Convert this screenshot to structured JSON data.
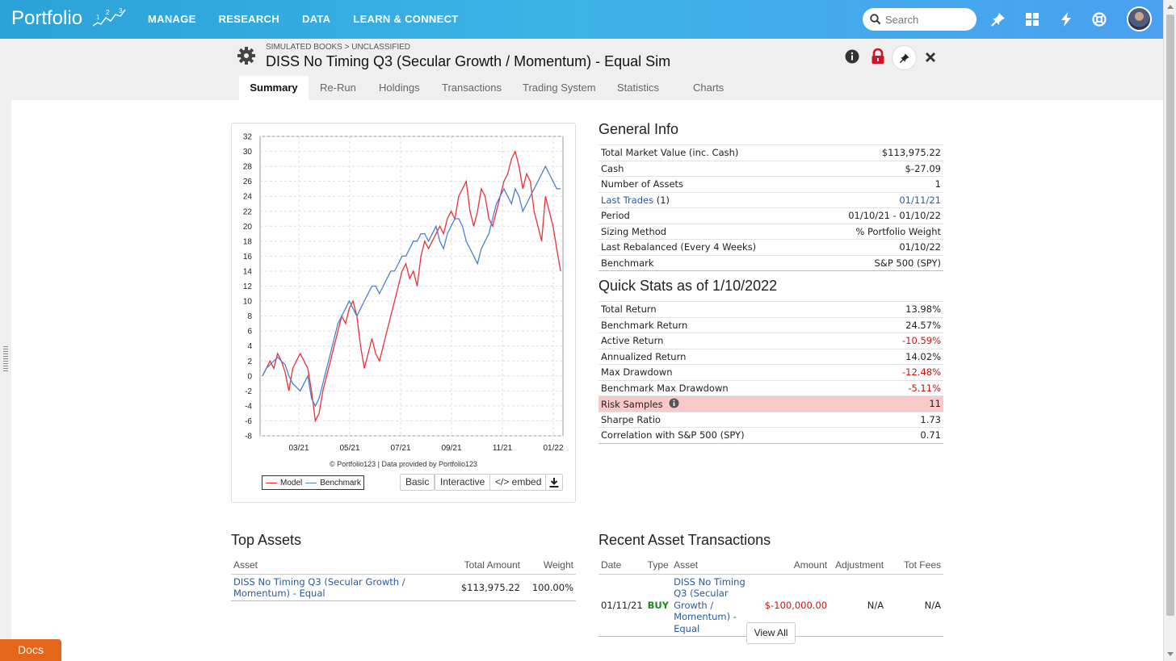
{
  "nav": {
    "logo": "Portfolio",
    "links": [
      "MANAGE",
      "RESEARCH",
      "DATA",
      "LEARN & CONNECT"
    ],
    "search_placeholder": "Search"
  },
  "header": {
    "breadcrumb": "SIMULATED BOOKS > UNCLASSIFIED",
    "title": "DISS No Timing Q3 (Secular Growth / Momentum) - Equal Sim"
  },
  "tabs": [
    "Summary",
    "Re-Run",
    "Holdings",
    "Transactions",
    "Trading System",
    "Statistics",
    "Charts"
  ],
  "general_info": {
    "title": "General Info",
    "rows": [
      {
        "label": "Total Market Value (inc. Cash)",
        "value": "$113,975.22"
      },
      {
        "label": "Cash",
        "value": "$-27.09"
      },
      {
        "label": "Number of Assets",
        "value": "1"
      },
      {
        "label": "Last Trades",
        "label_suffix": " (1)",
        "value": "01/11/21"
      },
      {
        "label": "Period",
        "value": "01/10/21 - 01/10/22"
      },
      {
        "label": "Sizing Method",
        "value": "% Portfolio Weight"
      },
      {
        "label": "Last Rebalanced (Every 4 Weeks)",
        "value": "01/10/22"
      },
      {
        "label": "Benchmark",
        "value": "S&P 500 (SPY)"
      }
    ]
  },
  "quick_stats": {
    "title": "Quick Stats as of 1/10/2022",
    "rows": [
      {
        "label": "Total Return",
        "value": "13.98%"
      },
      {
        "label": "Benchmark Return",
        "value": "24.57%"
      },
      {
        "label": "Active Return",
        "value": "-10.59%"
      },
      {
        "label": "Annualized Return",
        "value": "14.02%"
      },
      {
        "label": "Max Drawdown",
        "value": "-12.48%"
      },
      {
        "label": "Benchmark Max Drawdown",
        "value": "-5.11%"
      },
      {
        "label": "Risk Samples",
        "value": "11"
      },
      {
        "label": "Sharpe Ratio",
        "value": "1.73"
      },
      {
        "label": "Correlation with S&P 500 (SPY)",
        "value": "0.71"
      }
    ]
  },
  "chart": {
    "credit": "© Portfolio123 | Data provided by Portfolio123",
    "legend": [
      "Model",
      "Benchmark"
    ],
    "buttons": [
      "Basic",
      "Interactive",
      "</> embed"
    ],
    "colors": {
      "model": "#e8313a",
      "benchmark": "#4a7fd1"
    }
  },
  "chart_data": {
    "type": "line",
    "title": "",
    "xlabel": "",
    "ylabel": "",
    "x_ticks": [
      "03/21",
      "05/21",
      "07/21",
      "09/21",
      "11/21",
      "01/22"
    ],
    "y_ticks": [
      32,
      30,
      28,
      26,
      24,
      22,
      20,
      18,
      16,
      14,
      12,
      10,
      8,
      6,
      4,
      2,
      0,
      -2,
      -4,
      -6,
      -8
    ],
    "ylim": [
      -8,
      32
    ],
    "grid": true,
    "legend_position": "bottom-left",
    "series": [
      {
        "name": "Model",
        "values": [
          0,
          1,
          2,
          1,
          3,
          2,
          0.5,
          -2,
          1,
          2,
          3,
          2,
          1,
          -2,
          -6,
          -5,
          -2,
          0,
          2,
          4,
          6,
          8,
          7,
          9,
          10,
          8,
          4,
          1,
          3,
          5,
          3,
          2,
          4,
          6,
          8,
          10,
          12,
          14,
          15,
          13,
          14,
          12,
          16,
          18,
          17,
          18,
          19,
          20,
          19,
          21,
          22,
          21,
          24,
          25,
          26,
          22,
          20,
          22,
          25,
          24,
          21,
          20,
          22,
          24,
          26,
          27,
          29,
          30,
          28,
          25,
          27,
          26,
          22,
          20,
          18,
          24,
          22,
          20,
          17,
          14
        ]
      },
      {
        "name": "Benchmark",
        "values": [
          0,
          1,
          1.5,
          2,
          2.5,
          2,
          1.5,
          0,
          -1,
          -1.5,
          -2,
          -1,
          0,
          -3,
          -4,
          -3,
          -1,
          1,
          3,
          5,
          7,
          8,
          9,
          10,
          9,
          8,
          9,
          10,
          11,
          12,
          12,
          11,
          12,
          13,
          14,
          14,
          15,
          16,
          16,
          17,
          18,
          18,
          19,
          19,
          18,
          19,
          20,
          18,
          17,
          19,
          20,
          21,
          21,
          20,
          18,
          17,
          16,
          15,
          17,
          18,
          19,
          21,
          23,
          24,
          25,
          24,
          23,
          25,
          24,
          22,
          23,
          24,
          25,
          26,
          27,
          28,
          27,
          26,
          25,
          25
        ]
      }
    ]
  },
  "top_assets": {
    "title": "Top Assets",
    "headers": [
      "Asset",
      "Total Amount",
      "Weight"
    ],
    "rows": [
      {
        "asset": "DISS No Timing Q3 (Secular Growth / Momentum) - Equal",
        "amount": "$113,975.22",
        "weight": "100.00%"
      }
    ]
  },
  "recent_transactions": {
    "title": "Recent Asset Transactions",
    "headers": [
      "Date",
      "Type",
      "Asset",
      "Amount",
      "Adjustment",
      "Tot Fees"
    ],
    "rows": [
      {
        "date": "01/11/21",
        "type": "BUY",
        "asset": "DISS No Timing Q3 (Secular Growth / Momentum) - Equal",
        "amount": "$-100,000.00",
        "adjustment": "N/A",
        "fees": "N/A"
      }
    ],
    "view_all": "View All"
  },
  "docs_label": "Docs"
}
